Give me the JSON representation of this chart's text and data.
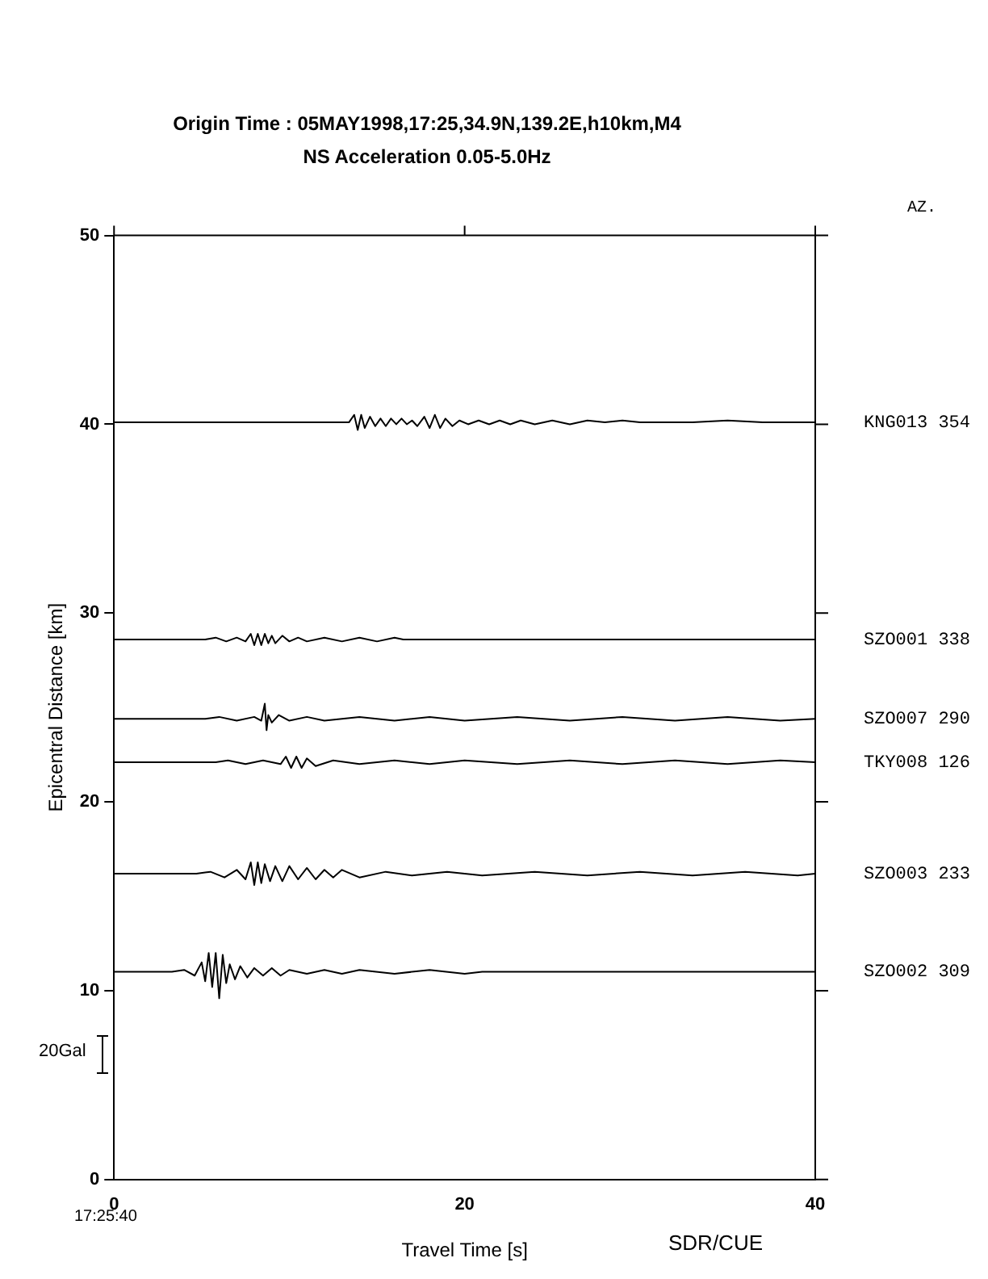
{
  "chart_data": {
    "type": "line",
    "title": "Origin Time : 05MAY1998,17:25,34.9N,139.2E,h10km,M4",
    "subtitle": "NS Acceleration 0.05-5.0Hz",
    "xlabel": "Travel Time [s]",
    "ylabel": "Epicentral Distance [km]",
    "xlim": [
      0,
      40
    ],
    "xticks": [
      0,
      20,
      40
    ],
    "ylim": [
      0,
      50
    ],
    "yticks": [
      0,
      10,
      20,
      30,
      40,
      50
    ],
    "legend": "right",
    "marker": "none",
    "line_style": "solid",
    "annotations": [
      "AZ.",
      "17:25:40",
      "20Gal",
      "SDR/CUE"
    ],
    "series": [
      {
        "name": "KNG013 354",
        "color": "#000000",
        "x": [
          0,
          13.4,
          13.7,
          13.9,
          14.1,
          14.3,
          14.6,
          14.9,
          15.2,
          15.5,
          15.8,
          16.1,
          16.4,
          16.7,
          17.0,
          17.3,
          17.7,
          18.0,
          18.3,
          18.6,
          18.9,
          19.3,
          19.7,
          20.2,
          20.8,
          21.4,
          22.0,
          22.6,
          23.2,
          24.0,
          25.0,
          26.0,
          27.0,
          28.0,
          29.0,
          30.0,
          31.0,
          32.0,
          33.0,
          35.0,
          37.0,
          39.0,
          40.0
        ],
        "values": [
          40.1,
          40.1,
          40.5,
          39.7,
          40.5,
          39.8,
          40.4,
          39.9,
          40.3,
          39.9,
          40.3,
          40.0,
          40.3,
          40.0,
          40.2,
          39.9,
          40.4,
          39.8,
          40.5,
          39.8,
          40.3,
          39.9,
          40.2,
          40.0,
          40.2,
          40.0,
          40.2,
          40.0,
          40.2,
          40.0,
          40.2,
          40.0,
          40.2,
          40.1,
          40.2,
          40.1,
          40.1,
          40.1,
          40.1,
          40.2,
          40.1,
          40.1,
          40.1
        ]
      },
      {
        "name": "SZO001 338",
        "color": "#000000",
        "x": [
          0,
          5.2,
          5.8,
          6.4,
          7.0,
          7.5,
          7.8,
          8.0,
          8.2,
          8.4,
          8.6,
          8.8,
          9.0,
          9.2,
          9.6,
          10.0,
          10.5,
          11.0,
          12.0,
          13.0,
          14.0,
          15.0,
          16.0,
          16.5,
          40.0
        ],
        "values": [
          28.6,
          28.6,
          28.7,
          28.5,
          28.7,
          28.5,
          28.9,
          28.3,
          28.9,
          28.3,
          28.9,
          28.4,
          28.8,
          28.4,
          28.8,
          28.5,
          28.7,
          28.5,
          28.7,
          28.5,
          28.7,
          28.5,
          28.7,
          28.6,
          28.6
        ]
      },
      {
        "name": "SZO007 290",
        "color": "#000000",
        "x": [
          0,
          5.2,
          6.0,
          7.0,
          8.0,
          8.4,
          8.6,
          8.7,
          8.8,
          9.0,
          9.4,
          10.0,
          11.0,
          12.0,
          14.0,
          16.0,
          18.0,
          20.0,
          23.0,
          26.0,
          29.0,
          32.0,
          35.0,
          38.0,
          40.0
        ],
        "values": [
          24.4,
          24.4,
          24.5,
          24.3,
          24.5,
          24.3,
          25.2,
          23.8,
          24.6,
          24.2,
          24.6,
          24.3,
          24.5,
          24.3,
          24.5,
          24.3,
          24.5,
          24.3,
          24.5,
          24.3,
          24.5,
          24.3,
          24.5,
          24.3,
          24.4
        ]
      },
      {
        "name": "TKY008 126",
        "color": "#000000",
        "x": [
          0,
          5.8,
          6.5,
          7.5,
          8.5,
          9.5,
          9.8,
          10.1,
          10.4,
          10.7,
          11.0,
          11.5,
          12.5,
          14.0,
          16.0,
          18.0,
          20.0,
          23.0,
          26.0,
          29.0,
          32.0,
          35.0,
          38.0,
          40.0
        ],
        "values": [
          22.1,
          22.1,
          22.2,
          22.0,
          22.2,
          22.0,
          22.4,
          21.8,
          22.4,
          21.8,
          22.3,
          21.9,
          22.2,
          22.0,
          22.2,
          22.0,
          22.2,
          22.0,
          22.2,
          22.0,
          22.2,
          22.0,
          22.2,
          22.1
        ]
      },
      {
        "name": "SZO003 233",
        "color": "#000000",
        "x": [
          0,
          4.7,
          5.5,
          6.3,
          7.0,
          7.5,
          7.8,
          8.0,
          8.2,
          8.4,
          8.6,
          8.9,
          9.2,
          9.6,
          10.0,
          10.5,
          11.0,
          11.5,
          12.0,
          12.5,
          13.0,
          14.0,
          15.5,
          17.0,
          19.0,
          21.0,
          24.0,
          27.0,
          30.0,
          33.0,
          36.0,
          39.0,
          40.0
        ],
        "values": [
          16.2,
          16.2,
          16.3,
          16.0,
          16.4,
          15.9,
          16.8,
          15.6,
          16.8,
          15.7,
          16.7,
          15.8,
          16.6,
          15.8,
          16.6,
          15.9,
          16.5,
          15.9,
          16.4,
          16.0,
          16.4,
          16.0,
          16.3,
          16.1,
          16.3,
          16.1,
          16.3,
          16.1,
          16.3,
          16.1,
          16.3,
          16.1,
          16.2
        ]
      },
      {
        "name": "SZO002 309",
        "color": "#000000",
        "x": [
          0,
          3.3,
          4.0,
          4.6,
          5.0,
          5.2,
          5.4,
          5.6,
          5.8,
          6.0,
          6.2,
          6.4,
          6.6,
          6.9,
          7.2,
          7.6,
          8.0,
          8.5,
          9.0,
          9.5,
          10.0,
          11.0,
          12.0,
          13.0,
          14.0,
          16.0,
          18.0,
          20.0,
          21.0,
          40.0
        ],
        "values": [
          11.0,
          11.0,
          11.1,
          10.8,
          11.5,
          10.5,
          12.0,
          10.2,
          12.0,
          9.6,
          11.9,
          10.4,
          11.4,
          10.6,
          11.3,
          10.7,
          11.2,
          10.8,
          11.2,
          10.8,
          11.1,
          10.9,
          11.1,
          10.9,
          11.1,
          10.9,
          11.1,
          10.9,
          11.0,
          11.0
        ]
      }
    ]
  }
}
